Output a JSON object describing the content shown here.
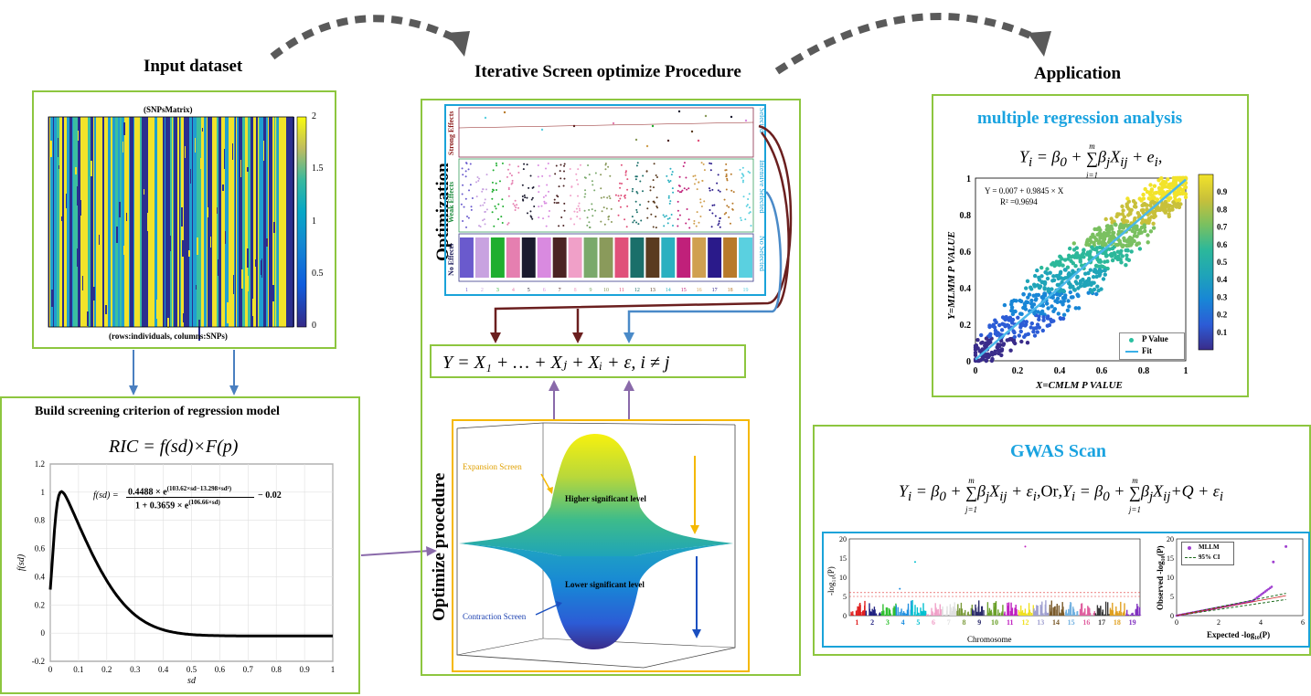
{
  "sections": {
    "input": "Input dataset",
    "iterative": "Iterative Screen optimize Procedure",
    "application": "Application",
    "criterion": "Build screening criterion of regression model"
  },
  "snps": {
    "title": "(SNPsMatrix)",
    "caption": "(rows:individuals, columns:SNPs)",
    "colorbar_ticks": [
      "2",
      "1.5",
      "1",
      "0.5",
      "0"
    ]
  },
  "ric": {
    "formula": "RIC = f(sd)×F(p)",
    "fsd_lhs": "f(sd) =",
    "fsd_num": "0.4488 × e",
    "fsd_num_exp": "(103.62×sd−13.298×sd²)",
    "fsd_den": "1 + 0.3659 × e",
    "fsd_den_exp": "(106.66×sd)",
    "fsd_tail": "− 0.02",
    "xlabel": "sd",
    "ylabel": "f(sd)",
    "xticks": [
      "0",
      "0.1",
      "0.2",
      "0.3",
      "0.4",
      "0.5",
      "0.6",
      "0.7",
      "0.8",
      "0.9",
      "1"
    ],
    "yticks": [
      "1.2",
      "1",
      "0.8",
      "0.6",
      "0.4",
      "0.2",
      "0",
      "-0.2"
    ]
  },
  "optimization": {
    "vertical_title": "Optimization",
    "rows": [
      "Strong Effects",
      "Weak Effects",
      "No Effects"
    ],
    "right_labels": [
      "Selected",
      "Intensive Selected",
      "No Selected"
    ],
    "chromosomes": [
      "1",
      "2",
      "3",
      "4",
      "5",
      "6",
      "7",
      "8",
      "9",
      "10",
      "11",
      "12",
      "13",
      "14",
      "15",
      "16",
      "17",
      "18",
      "19"
    ],
    "colors": [
      "#6a5acd",
      "#c8a2e0",
      "#1fae2f",
      "#e57fb0",
      "#1a1a2e",
      "#d98ae0",
      "#4b2323",
      "#f0a0c8",
      "#7aa96b",
      "#8a9a5b",
      "#e0507a",
      "#1a6f6a",
      "#5a3b1f",
      "#2ab0c0",
      "#c0207a",
      "#d0a050",
      "#2a1a8a",
      "#b87a2a",
      "#5ad0e0"
    ]
  },
  "model_equation": "Y = X₁ + … + Xⱼ + Xᵢ + ε, i ≠ j",
  "procedure": {
    "vertical_title": "Optimize procedure",
    "expansion": "Expansion Screen",
    "contraction": "Contraction Screen",
    "higher": "Higher significant level",
    "lower": "Lower significant level"
  },
  "mra": {
    "title": "multiple regression analysis",
    "fit_eq": "Y = 0.007 + 0.9845 × X",
    "r2": "R² =0.9694",
    "xlabel": "X=CMLM P VALUE",
    "ylabel": "Y=MLMM P VALUE",
    "legend": [
      "P Value",
      "Fit"
    ],
    "xticks": [
      "0",
      "0.2",
      "0.4",
      "0.6",
      "0.8",
      "1"
    ],
    "yticks": [
      "1",
      "0.8",
      "0.6",
      "0.4",
      "0.2",
      "0"
    ],
    "cbar_ticks": [
      "0.9",
      "0.8",
      "0.7",
      "0.6",
      "0.5",
      "0.4",
      "0.3",
      "0.2",
      "0.1"
    ]
  },
  "gwas": {
    "title": "GWAS Scan",
    "or": "Or",
    "manhattan_xlabel": "Chromosome",
    "manhattan_ylabel": "-log₁₀(P)",
    "manhattan_yticks": [
      "20",
      "15",
      "10",
      "5",
      "0"
    ],
    "qq_xlabel": "Expected -log₁₀(P)",
    "qq_ylabel": "Observed -log₁₀(P)",
    "qq_legend": [
      "MLLM",
      "95% CI"
    ],
    "qq_xticks": [
      "0",
      "2",
      "4",
      "6"
    ],
    "qq_yticks": [
      "20",
      "15",
      "10",
      "5",
      "0"
    ]
  }
}
